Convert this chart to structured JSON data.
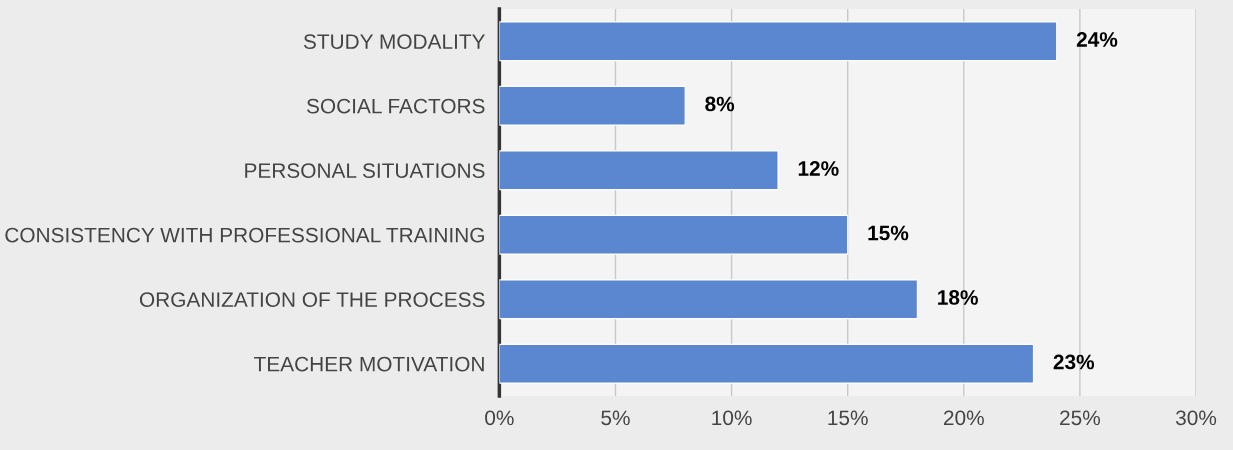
{
  "chart_data": {
    "type": "bar",
    "orientation": "horizontal",
    "categories": [
      "STUDY MODALITY",
      "SOCIAL FACTORS",
      "PERSONAL SITUATIONS",
      "CONSISTENCY WITH PROFESSIONAL TRAINING",
      "ORGANIZATION OF THE PROCESS",
      "TEACHER MOTIVATION"
    ],
    "values": [
      24,
      8,
      12,
      15,
      18,
      23
    ],
    "value_labels": [
      "24%",
      "8%",
      "12%",
      "15%",
      "18%",
      "23%"
    ],
    "color": "#5b87d0",
    "xlim": [
      0,
      30
    ],
    "xticks": [
      {
        "value": 0,
        "label": "0%"
      },
      {
        "value": 5,
        "label": "5%"
      },
      {
        "value": 10,
        "label": "10%"
      },
      {
        "value": 15,
        "label": "15%"
      },
      {
        "value": 20,
        "label": "20%"
      },
      {
        "value": 25,
        "label": "25%"
      },
      {
        "value": 30,
        "label": "30%"
      }
    ],
    "grid": "x"
  }
}
